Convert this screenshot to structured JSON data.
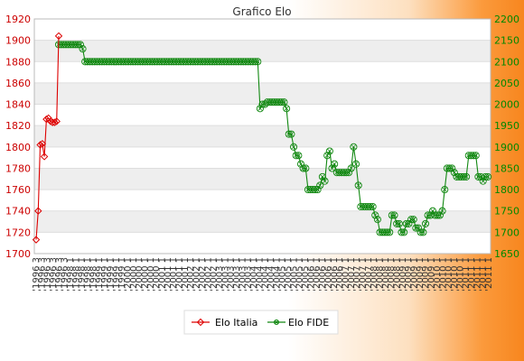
{
  "chart_data": {
    "type": "line",
    "title": "Grafico Elo",
    "grid": true,
    "legend_position": "bottom",
    "colors": {
      "elo_italia": "#dd0000",
      "elo_fide": "#118811",
      "band": "#eeeeee"
    },
    "y_left": {
      "min": 1700,
      "max": 1920,
      "ticks": [
        1700,
        1720,
        1740,
        1760,
        1780,
        1800,
        1820,
        1840,
        1860,
        1880,
        1900,
        1920
      ]
    },
    "y_right": {
      "min": 1650,
      "max": 2200,
      "ticks": [
        1650,
        1700,
        1750,
        1800,
        1850,
        1900,
        1950,
        2000,
        2050,
        2100,
        2150,
        2200
      ]
    },
    "series": [
      {
        "name": "Elo Italia",
        "axis": "left",
        "values": [
          1713,
          1740,
          1802,
          1803,
          1791,
          1826,
          1827,
          1824,
          1823,
          1823,
          1824,
          1904
        ]
      },
      {
        "name": "Elo FIDE",
        "axis": "right",
        "values": [
          2140,
          2140,
          2140,
          2140,
          2140,
          2140,
          2140,
          2140,
          2140,
          2140,
          2130,
          2100,
          2100,
          2100,
          2100,
          2100,
          2100,
          2100,
          2100,
          2100,
          2100,
          2100,
          2100,
          2100,
          2100,
          2100,
          2100,
          2100,
          2100,
          2100,
          2100,
          2100,
          2100,
          2100,
          2100,
          2100,
          2100,
          2100,
          2100,
          2100,
          2100,
          2100,
          2100,
          2100,
          2100,
          2100,
          2100,
          2100,
          2100,
          2100,
          2100,
          2100,
          2100,
          2100,
          2100,
          2100,
          2100,
          2100,
          2100,
          2100,
          2100,
          2100,
          2100,
          2100,
          2100,
          2100,
          2100,
          2100,
          2100,
          2100,
          2100,
          2100,
          2100,
          2100,
          2100,
          2100,
          2100,
          2100,
          2100,
          2100,
          2100,
          2100,
          2100,
          2100,
          1990,
          2000,
          2000,
          2005,
          2005,
          2005,
          2005,
          2005,
          2005,
          2005,
          2005,
          1990,
          1930,
          1930,
          1900,
          1880,
          1880,
          1860,
          1850,
          1850,
          1800,
          1800,
          1800,
          1800,
          1800,
          1810,
          1830,
          1820,
          1880,
          1890,
          1850,
          1860,
          1840,
          1840,
          1840,
          1840,
          1840,
          1840,
          1850,
          1900,
          1860,
          1810,
          1760,
          1760,
          1760,
          1760,
          1760,
          1760,
          1740,
          1730,
          1700,
          1700,
          1700,
          1700,
          1700,
          1740,
          1740,
          1720,
          1720,
          1700,
          1700,
          1720,
          1720,
          1730,
          1730,
          1710,
          1710,
          1700,
          1700,
          1720,
          1740,
          1740,
          1750,
          1740,
          1740,
          1740,
          1750,
          1800,
          1850,
          1850,
          1850,
          1840,
          1830,
          1830,
          1830,
          1830,
          1830,
          1880,
          1880,
          1880,
          1880,
          1830,
          1830,
          1820,
          1830,
          1830
        ]
      }
    ],
    "x_tick_labels": [
      "'1996 3",
      "'1998 1",
      "'1999 1",
      "'2000 1",
      "'2001 1",
      "'2002 1",
      "'2003 1",
      "'2004 1",
      "'2005 1",
      "'2006 1",
      "'2007 1",
      "'2008 1",
      "'2009 1",
      "'2010 1",
      "'2011 1"
    ]
  }
}
